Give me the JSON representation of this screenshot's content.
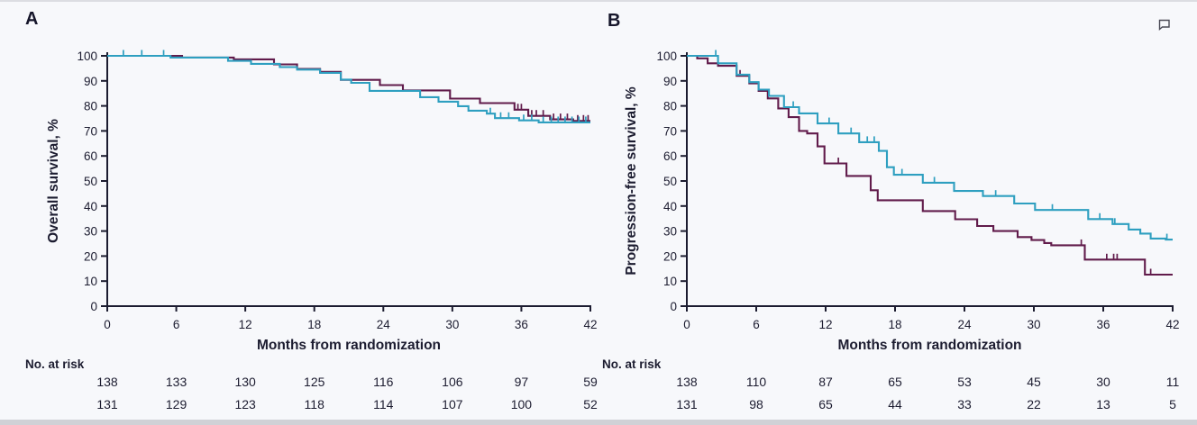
{
  "page": {
    "panel_a_label": "A",
    "panel_b_label": "B",
    "background": "#f7f8fb",
    "text_color": "#1c1c30",
    "comment_icon": "comment-bubble"
  },
  "chart_data": [
    {
      "type": "line",
      "panel": "A",
      "title": "",
      "ylabel": "Overall survival, %",
      "xlabel": "Months from randomization",
      "xticks": [
        0,
        6,
        12,
        18,
        24,
        30,
        36,
        42
      ],
      "yticks": [
        0,
        10,
        20,
        30,
        40,
        50,
        60,
        70,
        80,
        90,
        100
      ],
      "xlim": [
        0,
        42
      ],
      "ylim": [
        0,
        100
      ],
      "grid": false,
      "legend": "none",
      "curve_style": "kaplan-meier-step",
      "series": [
        {
          "name": "teal",
          "color": "#2e9fc0",
          "points": [
            [
              0,
              100
            ],
            [
              5.5,
              99.3
            ],
            [
              10.5,
              98
            ],
            [
              12.5,
              96.8
            ],
            [
              15,
              95.5
            ],
            [
              16.5,
              94.5
            ],
            [
              18.5,
              93.2
            ],
            [
              20.3,
              90.5
            ],
            [
              21.2,
              89.2
            ],
            [
              22.8,
              86
            ],
            [
              27.2,
              83.5
            ],
            [
              28.8,
              81.7
            ],
            [
              30.5,
              79.9
            ],
            [
              31.4,
              78.1
            ],
            [
              33,
              76.9
            ],
            [
              33.7,
              75.1
            ],
            [
              35.8,
              74.2
            ],
            [
              37.5,
              73.4
            ],
            [
              42,
              73.4
            ]
          ],
          "censor_marks": [
            [
              1.4,
              100
            ],
            [
              3,
              100
            ],
            [
              4.9,
              100
            ],
            [
              33.3,
              76.9
            ],
            [
              34.2,
              75.1
            ],
            [
              34.9,
              75.1
            ],
            [
              36.2,
              74.2
            ],
            [
              36.9,
              74.2
            ],
            [
              37.9,
              73.4
            ],
            [
              38.6,
              73.4
            ],
            [
              39.2,
              73.4
            ],
            [
              39.8,
              73.4
            ],
            [
              40.4,
              73.4
            ],
            [
              41,
              73.4
            ],
            [
              41.6,
              73.4
            ]
          ]
        },
        {
          "name": "maroon",
          "color": "#611b4b",
          "points": [
            [
              0,
              100
            ],
            [
              6.5,
              99.3
            ],
            [
              11,
              98.6
            ],
            [
              14.5,
              96.6
            ],
            [
              16.5,
              94.8
            ],
            [
              18.5,
              93.6
            ],
            [
              20.3,
              90.4
            ],
            [
              23.7,
              88.3
            ],
            [
              25.7,
              86.2
            ],
            [
              29.8,
              82.9
            ],
            [
              32.4,
              81.1
            ],
            [
              35.4,
              78.5
            ],
            [
              36.6,
              76
            ],
            [
              38.5,
              74.6
            ],
            [
              40.5,
              74
            ],
            [
              42,
              74
            ]
          ],
          "censor_marks": [
            [
              35.7,
              78.5
            ],
            [
              36,
              78.5
            ],
            [
              36.9,
              76
            ],
            [
              37.3,
              76
            ],
            [
              37.9,
              76
            ],
            [
              38.8,
              74.6
            ],
            [
              39.4,
              74.6
            ],
            [
              40,
              74.6
            ],
            [
              40.9,
              74
            ],
            [
              41.4,
              74
            ],
            [
              41.8,
              74
            ]
          ]
        }
      ],
      "risk_table": {
        "label": "No. at risk",
        "rows": [
          {
            "series": "teal",
            "color": "#2c93b7",
            "values": [
              138,
              133,
              130,
              125,
              116,
              106,
              97,
              59
            ]
          },
          {
            "series": "maroon",
            "color": "#7c2a5a",
            "values": [
              131,
              129,
              123,
              118,
              114,
              107,
              100,
              52
            ]
          }
        ]
      }
    },
    {
      "type": "line",
      "panel": "B",
      "title": "",
      "ylabel": "Progression-free survival, %",
      "xlabel": "Months from randomization",
      "xticks": [
        0,
        6,
        12,
        18,
        24,
        30,
        36,
        42
      ],
      "yticks": [
        0,
        10,
        20,
        30,
        40,
        50,
        60,
        70,
        80,
        90,
        100
      ],
      "xlim": [
        0,
        42
      ],
      "ylim": [
        0,
        100
      ],
      "grid": false,
      "legend": "none",
      "curve_style": "kaplan-meier-step",
      "series": [
        {
          "name": "teal",
          "color": "#2e9fc0",
          "points": [
            [
              0,
              100
            ],
            [
              2.7,
              97
            ],
            [
              4.3,
              92.5
            ],
            [
              5.4,
              89.5
            ],
            [
              6.2,
              86.5
            ],
            [
              7.1,
              84
            ],
            [
              8.4,
              79.5
            ],
            [
              9.7,
              77
            ],
            [
              11.3,
              73
            ],
            [
              13.1,
              69
            ],
            [
              14.9,
              65.5
            ],
            [
              16.6,
              62
            ],
            [
              17.3,
              55.5
            ],
            [
              17.9,
              52.5
            ],
            [
              20.4,
              49.3
            ],
            [
              23.1,
              46
            ],
            [
              25.6,
              44
            ],
            [
              28.3,
              41
            ],
            [
              30.1,
              38.4
            ],
            [
              34.7,
              34.8
            ],
            [
              36.8,
              32.8
            ],
            [
              38.2,
              30.6
            ],
            [
              39.2,
              29
            ],
            [
              40.1,
              27
            ],
            [
              41.4,
              26.6
            ],
            [
              42,
              26.6
            ]
          ],
          "censor_marks": [
            [
              2.5,
              100
            ],
            [
              9.2,
              79.5
            ],
            [
              12.3,
              73
            ],
            [
              14.2,
              69
            ],
            [
              15.6,
              65.5
            ],
            [
              16.2,
              65.5
            ],
            [
              18.6,
              52.5
            ],
            [
              21.4,
              49.3
            ],
            [
              26.7,
              44
            ],
            [
              31.6,
              38.4
            ],
            [
              35.7,
              34.8
            ],
            [
              37,
              32.8
            ],
            [
              41.5,
              26.6
            ]
          ]
        },
        {
          "name": "maroon",
          "color": "#611b4b",
          "points": [
            [
              0,
              100
            ],
            [
              0.9,
              99
            ],
            [
              1.8,
              97
            ],
            [
              2.7,
              96
            ],
            [
              4.3,
              92
            ],
            [
              5.4,
              89
            ],
            [
              6.2,
              86
            ],
            [
              7,
              83
            ],
            [
              7.9,
              79
            ],
            [
              8.8,
              75.5
            ],
            [
              9.7,
              70
            ],
            [
              10.4,
              69
            ],
            [
              11.3,
              63.8
            ],
            [
              11.9,
              57
            ],
            [
              13.8,
              52
            ],
            [
              15.9,
              46.3
            ],
            [
              16.5,
              42.3
            ],
            [
              20.4,
              38
            ],
            [
              23.2,
              34.7
            ],
            [
              25.1,
              32
            ],
            [
              26.5,
              30
            ],
            [
              28.6,
              27.6
            ],
            [
              29.8,
              26.4
            ],
            [
              30.9,
              25.2
            ],
            [
              31.5,
              24.3
            ],
            [
              34.4,
              18.6
            ],
            [
              39.6,
              12.6
            ],
            [
              42,
              12.6
            ]
          ],
          "censor_marks": [
            [
              4.6,
              92
            ],
            [
              13.1,
              57
            ],
            [
              34.1,
              24.3
            ],
            [
              36.3,
              18.6
            ],
            [
              36.9,
              18.6
            ],
            [
              37.2,
              18.6
            ],
            [
              40.1,
              12.6
            ]
          ]
        }
      ],
      "risk_table": {
        "label": "No. at risk",
        "rows": [
          {
            "series": "teal",
            "color": "#2c93b7",
            "values": [
              138,
              110,
              87,
              65,
              53,
              45,
              30,
              11
            ]
          },
          {
            "series": "maroon",
            "color": "#7c2a5a",
            "values": [
              131,
              98,
              65,
              44,
              33,
              22,
              13,
              5
            ]
          }
        ]
      }
    }
  ]
}
